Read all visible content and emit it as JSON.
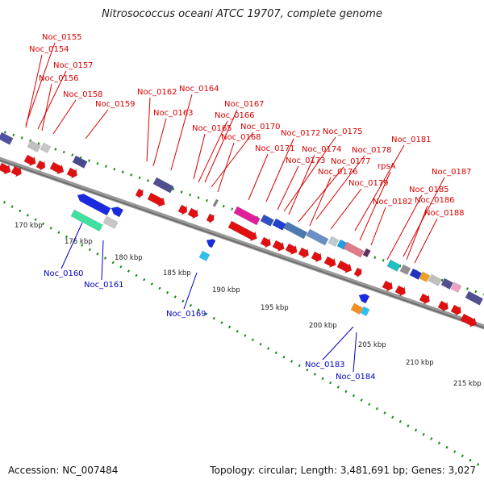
{
  "title": "Nitrosococcus oceani ATCC 19707, complete genome",
  "footer": {
    "accession": "Accession: NC_007484",
    "topology": "Topology: circular; Length: 3,481,691 bp; Genes: 3,027"
  },
  "colors": {
    "backbone": "#808080",
    "forward_label": "#d80000",
    "reverse_label": "#0000c0",
    "feature_red": "#e01010",
    "dots": "#1a8a1a"
  },
  "axis": {
    "unit": "kbp",
    "ticks": [
      "170 kbp",
      "175 kbp",
      "180 kbp",
      "185 kbp",
      "190 kbp",
      "195 kbp",
      "200 kbp",
      "205 kbp",
      "210 kbp",
      "215 kbp"
    ]
  },
  "genes_forward": [
    "Noc_0155",
    "Noc_0154",
    "Noc_0157",
    "Noc_0156",
    "Noc_0158",
    "Noc_0159",
    "Noc_0162",
    "Noc_0164",
    "Noc_0163",
    "Noc_0167",
    "Noc_0166",
    "Noc_0165",
    "Noc_0170",
    "Noc_0168",
    "Noc_0172",
    "Noc_0175",
    "Noc_0171",
    "Noc_0174",
    "Noc_0173",
    "Noc_0178",
    "Noc_0181",
    "Noc_0177",
    "Noc_0176",
    "rpsA",
    "Noc_0179",
    "Noc_0187",
    "Noc_0185",
    "Noc_0182",
    "Noc_0186",
    "Noc_0188"
  ],
  "genes_reverse": [
    "Noc_0160",
    "Noc_0161",
    "Noc_0169",
    "Noc_0183",
    "Noc_0184"
  ]
}
